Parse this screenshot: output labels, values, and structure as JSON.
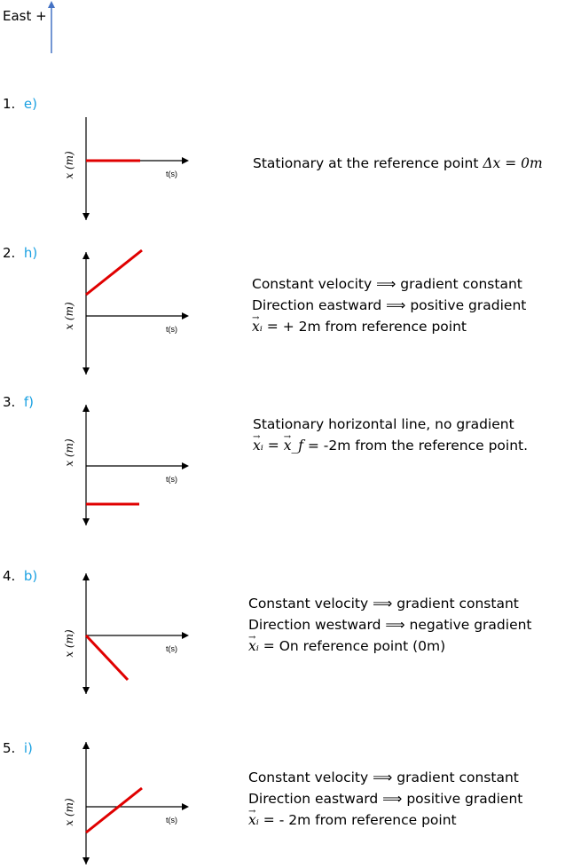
{
  "header": {
    "label": "East +"
  },
  "graphs": {
    "xlabel": "x (m)",
    "tlabel": "t(s)",
    "line_color": "#e00000",
    "axis_color": "#000000",
    "arrow_color": "#4472c4"
  },
  "items": [
    {
      "number": "1.",
      "letter": "e)",
      "lines": [
        {
          "text": "Stationary at the reference point ",
          "math": "Δx = 0m"
        }
      ]
    },
    {
      "number": "2.",
      "letter": "h)",
      "lines": [
        {
          "text": "Constant velocity ⟹ gradient constant"
        },
        {
          "text": "Direction eastward ⟹ positive gradient"
        },
        {
          "vec": "xᵢ",
          "eq": " =",
          "text": "  + 2m from reference point"
        }
      ]
    },
    {
      "number": "3.",
      "letter": "f)",
      "lines": [
        {
          "text": "Stationary horizontal line, no gradient"
        },
        {
          "vec": "xᵢ",
          "eq": " = ",
          "vec2": "x_f",
          "text": " = -2m from the reference point."
        }
      ]
    },
    {
      "number": "4.",
      "letter": "b)",
      "lines": [
        {
          "text": "Constant velocity ⟹ gradient constant"
        },
        {
          "text": "Direction westward ⟹ negative gradient"
        },
        {
          "vec": "xᵢ",
          "eq": " =",
          "text": "  On reference point (0m)"
        }
      ]
    },
    {
      "number": "5.",
      "letter": "i)",
      "lines": [
        {
          "text": "Constant velocity ⟹ gradient constant"
        },
        {
          "text": "Direction eastward ⟹ positive gradient"
        },
        {
          "vec": "xᵢ",
          "eq": " =",
          "text": "  - 2m from reference point"
        }
      ]
    }
  ]
}
